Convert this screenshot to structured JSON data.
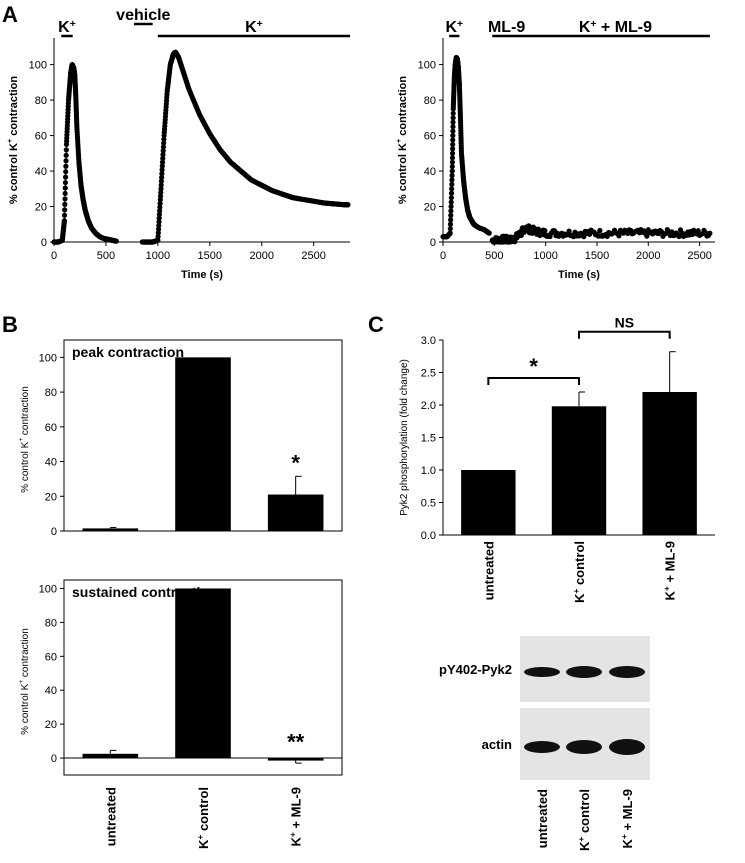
{
  "panel_labels": {
    "a": "A",
    "b": "B",
    "c": "C"
  },
  "chart_data": [
    {
      "id": "A-left",
      "type": "scatter",
      "xlabel": "Time (s)",
      "ylabel": "% control K⁺ contraction",
      "ylabel_parts": [
        "% control K",
        "+",
        " contraction"
      ],
      "xlim": [
        0,
        2850
      ],
      "ylim": [
        0,
        115
      ],
      "xticks": [
        0,
        500,
        1000,
        1500,
        2000,
        2500
      ],
      "yticks": [
        0,
        20,
        40,
        60,
        80,
        100
      ],
      "annotations": [
        {
          "text": "K",
          "sup": "+",
          "x_range": [
            70,
            180
          ],
          "underline": true
        },
        {
          "text": "vehicle",
          "x_range": [
            770,
            950
          ],
          "underline": true
        },
        {
          "text": "K",
          "sup": "+",
          "x_range": [
            1000,
            2850
          ],
          "underline": true
        }
      ],
      "series": [
        {
          "segments": [
            {
              "x": [
                0,
                40,
                80,
                100,
                120,
                140,
                160,
                175,
                190,
                200,
                210,
                220,
                240,
                260,
                280,
                300,
                330,
                360,
                400,
                440,
                480,
                520,
                560,
                600
              ],
              "y": [
                0,
                0,
                1,
                12,
                55,
                80,
                95,
                100,
                98,
                94,
                82,
                65,
                45,
                32,
                24,
                18,
                12,
                8,
                5,
                3,
                2,
                1.5,
                1,
                0.5
              ]
            },
            {
              "x": [
                850,
                900,
                950,
                1000,
                1030,
                1060,
                1090,
                1120,
                1150,
                1170,
                1200,
                1250,
                1300,
                1400,
                1500,
                1600,
                1700,
                1800,
                1900,
                2000,
                2100,
                2200,
                2300,
                2400,
                2500,
                2600,
                2700,
                2800,
                2830
              ],
              "y": [
                0,
                0,
                0,
                1,
                30,
                60,
                85,
                100,
                106,
                107,
                104,
                95,
                86,
                72,
                61,
                52,
                45,
                40,
                35,
                32,
                29,
                27,
                25,
                24,
                23,
                22,
                21.5,
                21,
                21
              ]
            }
          ]
        }
      ]
    },
    {
      "id": "A-right",
      "type": "scatter",
      "xlabel": "Time (s)",
      "ylabel": "% control K⁺ contraction",
      "ylabel_parts": [
        "% control K",
        "+",
        " contraction"
      ],
      "xlim": [
        0,
        2650
      ],
      "ylim": [
        0,
        115
      ],
      "xticks": [
        0,
        500,
        1000,
        1500,
        2000,
        2500
      ],
      "yticks": [
        0,
        20,
        40,
        60,
        80,
        100
      ],
      "annotations": [
        {
          "text": "K",
          "sup": "+",
          "x_range": [
            60,
            160
          ],
          "underline": true
        },
        {
          "text": "ML-9",
          "x_range": [
            480,
            760
          ],
          "underline": true
        },
        {
          "text": "K",
          "sup": "+",
          "tail": " + ML-9",
          "x_range": [
            760,
            2600
          ],
          "underline": true
        }
      ],
      "series": [
        {
          "segments": [
            {
              "x": [
                0,
                40,
                70,
                90,
                100,
                110,
                120,
                130,
                140,
                150,
                160,
                170,
                180,
                200,
                220,
                240,
                260,
                300,
                350,
                400,
                450
              ],
              "y": [
                3,
                3,
                5,
                40,
                75,
                92,
                100,
                104,
                103,
                98,
                88,
                70,
                50,
                35,
                25,
                18,
                14,
                10,
                8,
                7,
                5
              ]
            },
            {
              "x": [
                480,
                550,
                600,
                650,
                700,
                760,
                800,
                900,
                1000,
                1200,
                1400,
                1600,
                1800,
                2000,
                2200,
                2400,
                2600
              ],
              "y": [
                1,
                1,
                1.5,
                1,
                2,
                5,
                8,
                6,
                5,
                5,
                5,
                5,
                5,
                5,
                5,
                5,
                5
              ]
            }
          ]
        }
      ]
    },
    {
      "id": "B-peak",
      "type": "bar",
      "title": "peak contraction",
      "ylabel": "% control K⁺ contraction",
      "ylabel_parts": [
        "% control K",
        "+",
        " contraction"
      ],
      "categories": [
        "untreated",
        "K⁺ control",
        "K⁺ + ML-9"
      ],
      "values": [
        1.5,
        100,
        21
      ],
      "errors": [
        0.5,
        0,
        10.5
      ],
      "ylim": [
        0,
        110
      ],
      "yticks": [
        0,
        20,
        40,
        60,
        80,
        100
      ],
      "significance": [
        {
          "category": 2,
          "label": "*"
        }
      ]
    },
    {
      "id": "B-sustained",
      "type": "bar",
      "title": "sustained contraction",
      "ylabel": "% control K⁺ contraction",
      "ylabel_parts": [
        "% control K",
        "+",
        " contraction"
      ],
      "categories": [
        "untreated",
        "K⁺ control",
        "K⁺ + ML-9"
      ],
      "values": [
        2.5,
        100,
        -1.5
      ],
      "errors": [
        2,
        0,
        1.5
      ],
      "ylim": [
        -10,
        105
      ],
      "yticks": [
        0,
        20,
        40,
        60,
        80,
        100
      ],
      "significance": [
        {
          "category": 2,
          "label": "**"
        }
      ]
    },
    {
      "id": "C",
      "type": "bar",
      "ylabel": "Pyk2 phosphorylation (fold change)",
      "categories": [
        "untreated",
        "K⁺ control",
        "K⁺ + ML-9"
      ],
      "values": [
        1.0,
        1.98,
        2.2
      ],
      "errors": [
        0,
        0.22,
        0.62
      ],
      "ylim": [
        0,
        3.0
      ],
      "yticks": [
        0.0,
        0.5,
        1.0,
        1.5,
        2.0,
        2.5,
        3.0
      ],
      "comparisons": [
        {
          "from": 0,
          "to": 1,
          "label": "*"
        },
        {
          "from": 1,
          "to": 2,
          "label": "NS"
        }
      ]
    }
  ],
  "categories_display": [
    {
      "main": "untreated"
    },
    {
      "k": "K",
      "sup": "+",
      "tail": " control"
    },
    {
      "k": "K",
      "sup": "+",
      "tail": " + ML-9"
    }
  ],
  "blot": {
    "rows": [
      "pY402-Pyk2",
      "actin"
    ],
    "lanes": [
      {
        "main": "untreated"
      },
      {
        "k": "K",
        "sup": "+",
        "tail": " control"
      },
      {
        "k": "K",
        "sup": "+",
        "tail": " + ML-9"
      }
    ]
  }
}
